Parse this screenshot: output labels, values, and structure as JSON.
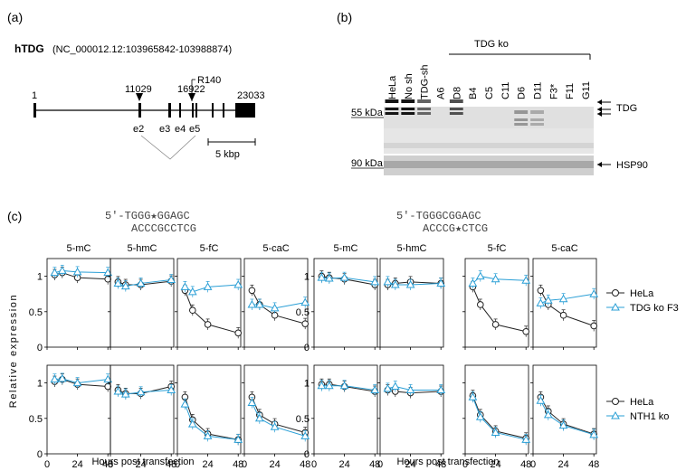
{
  "colors": {
    "hela": "#222222",
    "mutant": "#2a9fd6",
    "blot_bg": "#d8d8d8"
  },
  "panel_a": {
    "label": "(a)",
    "gene": "hTDG",
    "accession": "(NC_000012.12:103965842-103988874)",
    "start": "1",
    "end": "23033",
    "site1": "11029",
    "site2": "16922",
    "mutation": "R140",
    "exons": [
      "e2",
      "e3",
      "e4",
      "e5"
    ],
    "scale": "5 kbp"
  },
  "panel_b": {
    "label": "(b)",
    "group_label": "TDG ko",
    "lanes": [
      "HeLa",
      "No sh",
      "TDG-sh",
      "A6",
      "D8",
      "B4",
      "C5",
      "C11",
      "D6",
      "D11",
      "F3*",
      "F11",
      "G11"
    ],
    "kda_55": "55 kDa",
    "kda_90": "90 kDa",
    "band_tdg": "TDG",
    "band_hsp": "HSP90"
  },
  "panel_c": {
    "label": "(c)",
    "seq_left_top": "5′-TGGG★GGAGC",
    "seq_left_bottom": "ACCCGCCTCG",
    "seq_right_top": "5′-TGGGCGGAGC",
    "seq_right_bottom": "ACCCG★CTCG",
    "ylabel": "Relative expression",
    "xlabel": "Hours post transfection",
    "mods": [
      "5-mC",
      "5-hmC",
      "5-fC",
      "5-caC"
    ],
    "y_ticks": [
      "0",
      "0.5",
      "1"
    ],
    "x_ticks": [
      "0",
      "24",
      "48"
    ],
    "legend_top": [
      "HeLa",
      "TDG ko F3"
    ],
    "legend_bottom": [
      "HeLa",
      "NTH1 ko"
    ]
  },
  "chart_data": {
    "type": "line",
    "x": [
      6,
      12,
      24,
      48
    ],
    "xlim": [
      0,
      50
    ],
    "ylim": [
      0,
      1.25
    ],
    "xlabel": "Hours post transfection",
    "ylabel": "Relative expression",
    "panels": [
      {
        "row": "top",
        "construct": "left",
        "mod": "5-mC",
        "series": [
          {
            "name": "HeLa",
            "values": [
              1.02,
              1.05,
              0.98,
              0.96
            ]
          },
          {
            "name": "TDG ko F3",
            "values": [
              1.05,
              1.08,
              1.06,
              1.05
            ]
          }
        ]
      },
      {
        "row": "top",
        "construct": "left",
        "mod": "5-hmC",
        "series": [
          {
            "name": "HeLa",
            "values": [
              0.92,
              0.88,
              0.88,
              0.93
            ]
          },
          {
            "name": "TDG ko F3",
            "values": [
              0.9,
              0.86,
              0.9,
              0.95
            ]
          }
        ]
      },
      {
        "row": "top",
        "construct": "left",
        "mod": "5-fC",
        "series": [
          {
            "name": "HeLa",
            "values": [
              0.8,
              0.52,
              0.32,
              0.2
            ]
          },
          {
            "name": "TDG ko F3",
            "values": [
              0.85,
              0.78,
              0.85,
              0.88
            ]
          }
        ]
      },
      {
        "row": "top",
        "construct": "left",
        "mod": "5-caC",
        "series": [
          {
            "name": "HeLa",
            "values": [
              0.8,
              0.6,
              0.45,
              0.33
            ]
          },
          {
            "name": "TDG ko F3",
            "values": [
              0.6,
              0.6,
              0.55,
              0.63
            ]
          }
        ]
      },
      {
        "row": "top",
        "construct": "right",
        "mod": "5-mC",
        "series": [
          {
            "name": "HeLa",
            "values": [
              1.0,
              0.98,
              0.96,
              0.88
            ]
          },
          {
            "name": "TDG ko F3",
            "values": [
              0.98,
              0.97,
              0.98,
              0.92
            ]
          }
        ]
      },
      {
        "row": "top",
        "construct": "right",
        "mod": "5-hmC",
        "series": [
          {
            "name": "HeLa",
            "values": [
              0.88,
              0.9,
              0.92,
              0.9
            ]
          },
          {
            "name": "TDG ko F3",
            "values": [
              0.92,
              0.88,
              0.88,
              0.9
            ]
          }
        ]
      },
      {
        "row": "top",
        "construct": "right",
        "mod": "5-fC",
        "series": [
          {
            "name": "HeLa",
            "values": [
              0.85,
              0.6,
              0.32,
              0.22
            ]
          },
          {
            "name": "TDG ko F3",
            "values": [
              0.9,
              1.0,
              0.96,
              0.94
            ]
          }
        ]
      },
      {
        "row": "top",
        "construct": "right",
        "mod": "5-caC",
        "series": [
          {
            "name": "HeLa",
            "values": [
              0.8,
              0.6,
              0.45,
              0.3
            ]
          },
          {
            "name": "TDG ko F3",
            "values": [
              0.62,
              0.66,
              0.68,
              0.75
            ]
          }
        ]
      },
      {
        "row": "bottom",
        "construct": "left",
        "mod": "5-mC",
        "series": [
          {
            "name": "HeLa",
            "values": [
              1.02,
              1.05,
              0.98,
              0.95
            ]
          },
          {
            "name": "NTH1 ko",
            "values": [
              1.05,
              1.06,
              1.0,
              1.05
            ]
          }
        ]
      },
      {
        "row": "bottom",
        "construct": "left",
        "mod": "5-hmC",
        "series": [
          {
            "name": "HeLa",
            "values": [
              0.9,
              0.85,
              0.85,
              0.95
            ]
          },
          {
            "name": "NTH1 ko",
            "values": [
              0.88,
              0.84,
              0.87,
              0.9
            ]
          }
        ]
      },
      {
        "row": "bottom",
        "construct": "left",
        "mod": "5-fC",
        "series": [
          {
            "name": "HeLa",
            "values": [
              0.8,
              0.48,
              0.28,
              0.2
            ]
          },
          {
            "name": "NTH1 ko",
            "values": [
              0.7,
              0.42,
              0.25,
              0.2
            ]
          }
        ]
      },
      {
        "row": "bottom",
        "construct": "left",
        "mod": "5-caC",
        "series": [
          {
            "name": "HeLa",
            "values": [
              0.8,
              0.55,
              0.42,
              0.3
            ]
          },
          {
            "name": "NTH1 ko",
            "values": [
              0.72,
              0.5,
              0.38,
              0.25
            ]
          }
        ]
      },
      {
        "row": "bottom",
        "construct": "right",
        "mod": "5-mC",
        "series": [
          {
            "name": "HeLa",
            "values": [
              0.98,
              0.98,
              0.95,
              0.88
            ]
          },
          {
            "name": "NTH1 ko",
            "values": [
              0.96,
              0.96,
              0.96,
              0.9
            ]
          }
        ]
      },
      {
        "row": "bottom",
        "construct": "right",
        "mod": "5-hmC",
        "series": [
          {
            "name": "HeLa",
            "values": [
              0.9,
              0.88,
              0.86,
              0.88
            ]
          },
          {
            "name": "NTH1 ko",
            "values": [
              0.92,
              0.95,
              0.9,
              0.9
            ]
          }
        ]
      },
      {
        "row": "bottom",
        "construct": "right",
        "mod": "5-fC",
        "series": [
          {
            "name": "HeLa",
            "values": [
              0.82,
              0.55,
              0.32,
              0.22
            ]
          },
          {
            "name": "NTH1 ko",
            "values": [
              0.8,
              0.52,
              0.3,
              0.2
            ]
          }
        ]
      },
      {
        "row": "bottom",
        "construct": "right",
        "mod": "5-caC",
        "series": [
          {
            "name": "HeLa",
            "values": [
              0.8,
              0.6,
              0.42,
              0.28
            ]
          },
          {
            "name": "NTH1 ko",
            "values": [
              0.75,
              0.55,
              0.4,
              0.27
            ]
          }
        ]
      }
    ]
  }
}
